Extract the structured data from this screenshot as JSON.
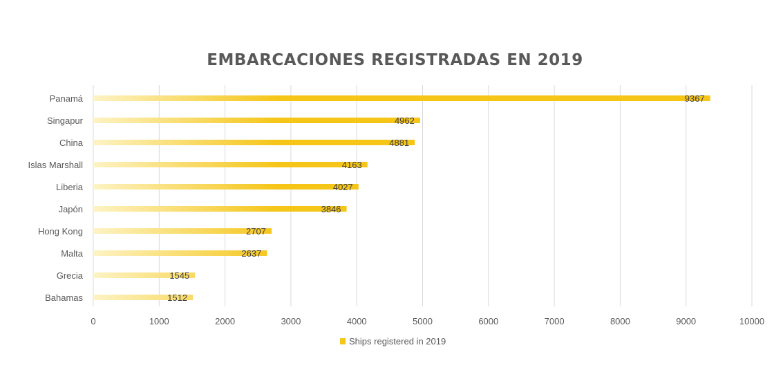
{
  "chart_data": {
    "type": "bar",
    "orientation": "horizontal",
    "title": "EMBARCACIONES REGISTRADAS EN 2019",
    "xlabel": "",
    "ylabel": "",
    "categories": [
      "Panamá",
      "Singapur",
      "China",
      "Islas Marshall",
      "Liberia",
      "Japón",
      "Hong Kong",
      "Malta",
      "Grecia",
      "Bahamas"
    ],
    "series": [
      {
        "name": "Ships registered in 2019",
        "values": [
          9367,
          4962,
          4881,
          4163,
          4027,
          3846,
          2707,
          2637,
          1545,
          1512
        ]
      }
    ],
    "xlim": [
      0,
      10000
    ],
    "x_ticks": [
      0,
      1000,
      2000,
      3000,
      4000,
      5000,
      6000,
      7000,
      8000,
      9000,
      10000
    ],
    "grid": "vertical",
    "legend_position": "bottom",
    "data_labels": true,
    "colors": {
      "bar": "#f5c518",
      "bar_fade": "#fdf3c4",
      "grid": "#d9d9d9",
      "text": "#595959",
      "label": "#404040"
    }
  }
}
